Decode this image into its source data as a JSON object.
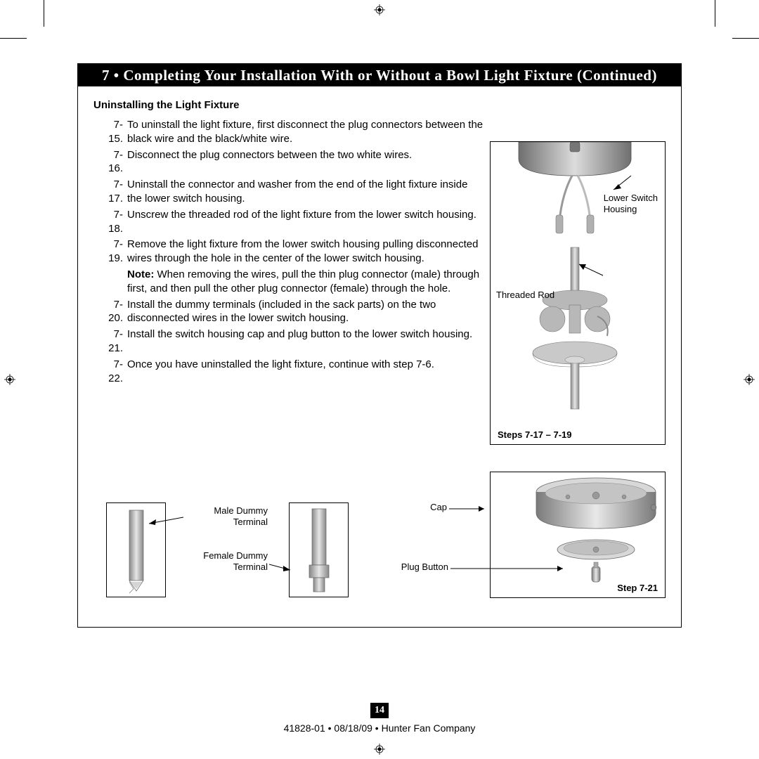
{
  "banner": "7 • Completing Your Installation With or Without a Bowl Light Fixture (Continued)",
  "subhead": "Uninstalling the Light Fixture",
  "steps": [
    {
      "n": "7-15.",
      "t": "To uninstall the light fixture, first disconnect the plug connectors between the black wire and the black/white wire."
    },
    {
      "n": "7-16.",
      "t": "Disconnect the plug connectors between the two white wires."
    },
    {
      "n": "7-17.",
      "t": "Uninstall the connector and washer from the end of the light fixture inside the lower switch housing."
    },
    {
      "n": "7-18.",
      "t": "Unscrew the threaded rod of the light fixture from the lower switch housing."
    },
    {
      "n": "7-19.",
      "t": "Remove the light fixture from the lower switch housing pulling disconnected wires through the hole in the center of the lower switch housing."
    },
    {
      "n": "",
      "note": "Note:",
      "t": " When removing the wires, pull the thin plug connector (male) through first, and then pull the other plug connector (female) through the hole."
    },
    {
      "n": "7-20.",
      "t": "Install the dummy terminals (included in the sack parts) on the two disconnected wires in the lower switch housing."
    },
    {
      "n": "7-21.",
      "t": "Install the switch housing cap and plug button to the lower switch housing."
    },
    {
      "n": "7-22.",
      "t": "Once you have uninstalled the light fixture, continue with step 7-6."
    }
  ],
  "fig1_caption": "Steps 7-17 – 7-19",
  "fig2_caption": "Step 7-21",
  "labels": {
    "lower_switch_housing": "Lower Switch\nHousing",
    "threaded_rod": "Threaded Rod",
    "cap": "Cap",
    "plug_button": "Plug Button",
    "male_dummy": "Male Dummy\nTerminal",
    "female_dummy": "Female Dummy\nTerminal"
  },
  "page_number": "14",
  "footer": "41828-01  •  08/18/09  •  Hunter Fan Company",
  "colors": {
    "banner_bg": "#000000",
    "banner_fg": "#ffffff",
    "text": "#000000",
    "illus_light": "#d0d0d0",
    "illus_mid": "#a8a8a8",
    "illus_dark": "#7a7a7a"
  }
}
